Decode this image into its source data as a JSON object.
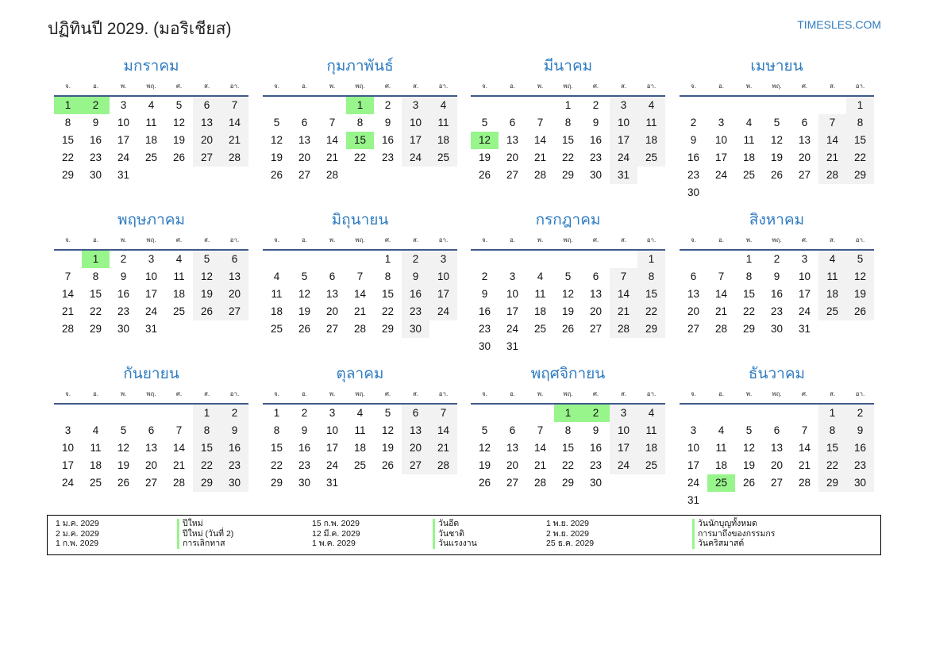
{
  "header": {
    "title": "ปฏิทินปี 2029. (มอริเชียส)",
    "brand": "TIMESLES.COM"
  },
  "year": 2029,
  "weekdays": [
    "จ.",
    "อ.",
    "พ.",
    "พฤ.",
    "ศ.",
    "ส.",
    "อา."
  ],
  "months": [
    {
      "name": "มกราคม",
      "holidays": [
        1,
        2
      ]
    },
    {
      "name": "กุมภาพันธ์",
      "holidays": [
        1,
        15
      ]
    },
    {
      "name": "มีนาคม",
      "holidays": [
        12
      ]
    },
    {
      "name": "เมษายน",
      "holidays": []
    },
    {
      "name": "พฤษภาคม",
      "holidays": [
        1
      ]
    },
    {
      "name": "มิถุนายน",
      "holidays": []
    },
    {
      "name": "กรกฎาคม",
      "holidays": []
    },
    {
      "name": "สิงหาคม",
      "holidays": []
    },
    {
      "name": "กันยายน",
      "holidays": []
    },
    {
      "name": "ตุลาคม",
      "holidays": []
    },
    {
      "name": "พฤศจิกายน",
      "holidays": [
        1,
        2
      ]
    },
    {
      "name": "ธันวาคม",
      "holidays": [
        25
      ]
    }
  ],
  "colors": {
    "holiday": "#98f58c",
    "weekend": "#f2f2f2",
    "accent": "#2f7cc1"
  },
  "legend": [
    {
      "date": "1 ม.ค. 2029",
      "name": "ปีใหม่"
    },
    {
      "date": "2 ม.ค. 2029",
      "name": "ปีใหม่ (วันที่ 2)"
    },
    {
      "date": "1 ก.พ. 2029",
      "name": "การเลิกทาส"
    },
    {
      "date": "15 ก.พ. 2029",
      "name": "วันอีด"
    },
    {
      "date": "12 มี.ค. 2029",
      "name": "วันชาติ"
    },
    {
      "date": "1 พ.ค. 2029",
      "name": "วันแรงงาน"
    },
    {
      "date": "1 พ.ย. 2029",
      "name": "วันนักบุญทั้งหมด"
    },
    {
      "date": "2 พ.ย. 2029",
      "name": "การมาถึงของกรรมกร"
    },
    {
      "date": "25 ธ.ค. 2029",
      "name": "วันคริสมาสต์"
    }
  ]
}
